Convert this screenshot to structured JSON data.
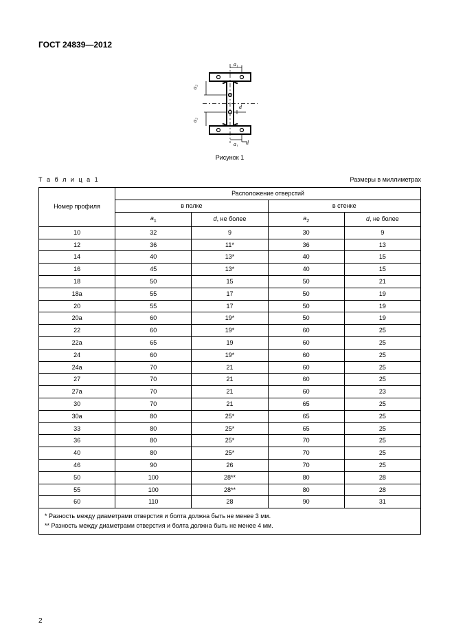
{
  "doc_title": "ГОСТ 24839—2012",
  "figure_caption": "Рисунок 1",
  "table_label": "Т а б л и ц а  1",
  "units_note": "Размеры в миллиметрах",
  "headers": {
    "profile": "Номер профиля",
    "group_top": "Расположение отверстий",
    "group_flange": "в полке",
    "group_web": "в стенке",
    "a1_html": "<i>a</i><sub>1</sub>",
    "a2_html": "<i>a</i><sub>2</sub>",
    "d_nb": "<i>d</i>, не более"
  },
  "rows": [
    [
      "10",
      "32",
      "9",
      "30",
      "9"
    ],
    [
      "12",
      "36",
      "11*",
      "36",
      "13"
    ],
    [
      "14",
      "40",
      "13*",
      "40",
      "15"
    ],
    [
      "16",
      "45",
      "13*",
      "40",
      "15"
    ],
    [
      "18",
      "50",
      "15",
      "50",
      "21"
    ],
    [
      "18а",
      "55",
      "17",
      "50",
      "19"
    ],
    [
      "20",
      "55",
      "17",
      "50",
      "19"
    ],
    [
      "20а",
      "60",
      "19*",
      "50",
      "19"
    ],
    [
      "22",
      "60",
      "19*",
      "60",
      "25"
    ],
    [
      "22а",
      "65",
      "19",
      "60",
      "25"
    ],
    [
      "24",
      "60",
      "19*",
      "60",
      "25"
    ],
    [
      "24а",
      "70",
      "21",
      "60",
      "25"
    ],
    [
      "27",
      "70",
      "21",
      "60",
      "25"
    ],
    [
      "27а",
      "70",
      "21",
      "60",
      "23"
    ],
    [
      "30",
      "70",
      "21",
      "65",
      "25"
    ],
    [
      "30а",
      "80",
      "25*",
      "65",
      "25"
    ],
    [
      "33",
      "80",
      "25*",
      "65",
      "25"
    ],
    [
      "36",
      "80",
      "25*",
      "70",
      "25"
    ],
    [
      "40",
      "80",
      "25*",
      "70",
      "25"
    ],
    [
      "46",
      "90",
      "26",
      "70",
      "25"
    ],
    [
      "50",
      "100",
      "28**",
      "80",
      "28"
    ],
    [
      "55",
      "100",
      "28**",
      "80",
      "28"
    ],
    [
      "60",
      "110",
      "28",
      "90",
      "31"
    ]
  ],
  "footnotes": [
    "*  Разность между диаметрами отверстия и болта должна быть не менее 3 мм.",
    "** Разность между диаметрами отверстия и болта должна быть не менее 4 мм."
  ],
  "page_number": "2",
  "svg_labels": {
    "a1_top": "a₁",
    "a2_left": "a₂",
    "d_right": "d",
    "a2_bot": "a₂",
    "a1_bot": "a₁",
    "d_bot": "d"
  },
  "style": {
    "line_color": "#000000",
    "hatch_color": "#000000",
    "label_font_size": 9
  }
}
